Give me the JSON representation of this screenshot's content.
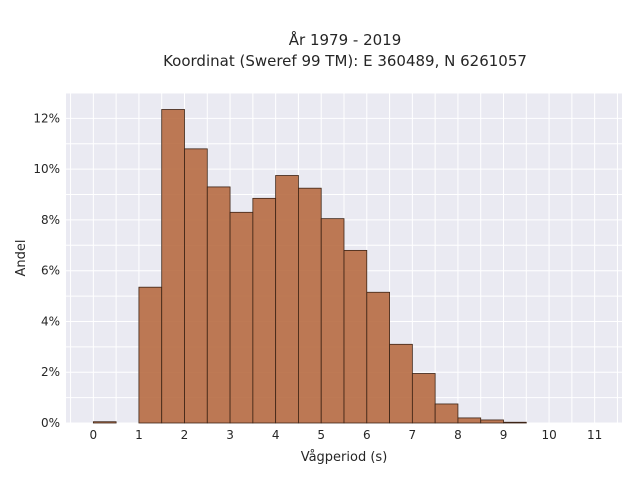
{
  "chart_data": {
    "type": "bar",
    "title_line1": "År 1979 - 2019",
    "title_line2": "Koordinat (Sweref 99 TM): E 360489, N 6261057",
    "xlabel": "Vågperiod (s)",
    "ylabel": "Andel",
    "xlim": [
      -0.6,
      11.6
    ],
    "ylim": [
      0,
      13
    ],
    "x_ticks": [
      0,
      1,
      2,
      3,
      4,
      5,
      6,
      7,
      8,
      9,
      10,
      11
    ],
    "y_ticks": [
      0,
      2,
      4,
      6,
      8,
      10,
      12
    ],
    "y_tick_format": "percent",
    "bin_width": 0.5,
    "bins": [
      {
        "start": 0.0,
        "value": 0.05
      },
      {
        "start": 0.5,
        "value": 0.0
      },
      {
        "start": 1.0,
        "value": 5.35
      },
      {
        "start": 1.5,
        "value": 12.35
      },
      {
        "start": 2.0,
        "value": 10.8
      },
      {
        "start": 2.5,
        "value": 9.3
      },
      {
        "start": 3.0,
        "value": 8.3
      },
      {
        "start": 3.5,
        "value": 8.85
      },
      {
        "start": 4.0,
        "value": 9.75
      },
      {
        "start": 4.5,
        "value": 9.25
      },
      {
        "start": 5.0,
        "value": 8.05
      },
      {
        "start": 5.5,
        "value": 6.8
      },
      {
        "start": 6.0,
        "value": 5.15
      },
      {
        "start": 6.5,
        "value": 3.1
      },
      {
        "start": 7.0,
        "value": 1.95
      },
      {
        "start": 7.5,
        "value": 0.75
      },
      {
        "start": 8.0,
        "value": 0.2
      },
      {
        "start": 8.5,
        "value": 0.12
      },
      {
        "start": 9.0,
        "value": 0.03
      }
    ],
    "grid": true,
    "background_color": "#eaeaf2",
    "bar_color": "#b5683e"
  }
}
